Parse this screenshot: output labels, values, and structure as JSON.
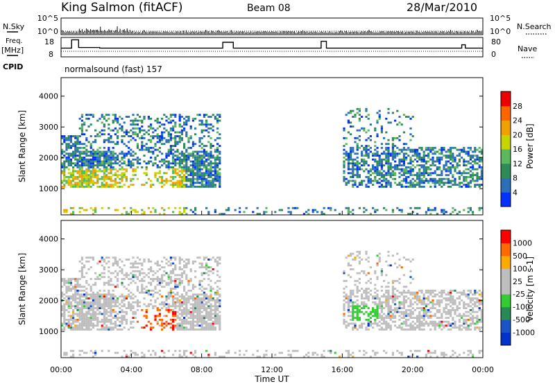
{
  "header": {
    "station": "King Salmon (fitACF)",
    "beam": "Beam 08",
    "date": "28/Mar/2010"
  },
  "left_labels": {
    "nsky": "N.Sky",
    "freq_line1": "Freq.",
    "freq_line2": "[MHz]",
    "cpid": "CPID"
  },
  "right_labels": {
    "nsearch": "N.Search",
    "nave": "Nave"
  },
  "cpid_text": "normalsound (fast) 157",
  "colors": {
    "power": [
      "#0033ff",
      "#2a6fb8",
      "#2e8b57",
      "#5cb85c",
      "#c8d400",
      "#f0a000",
      "#ff6600",
      "#ee0000"
    ],
    "velocity": [
      "#ff0000",
      "#ff6a00",
      "#ffaa00",
      "#bebebe",
      "#bebebe",
      "#33cc33",
      "#2a8a55",
      "#1a55c8",
      "#0033cc"
    ],
    "ground_scatter": "#bebebe"
  },
  "chart_data": [
    {
      "type": "line",
      "name": "noise-panel",
      "xlabel": "",
      "ylabel": "N.Sky",
      "y_ticks_left": [
        "10^5",
        "10^0"
      ],
      "y_ticks_right": [
        "10^5",
        "10^0"
      ],
      "right_label": "N.Search"
    },
    {
      "type": "line",
      "name": "freq-nave-panel",
      "ylabel": "Freq. [MHz]",
      "y_ticks_left": [
        "18",
        "8"
      ],
      "y_ticks_right": [
        "80",
        "0"
      ],
      "ylim": [
        8,
        18
      ],
      "x": [
        0,
        0.6,
        0.6,
        1.0,
        1.0,
        2.2,
        2.2,
        9.2,
        9.2,
        9.8,
        9.8,
        14.8,
        14.8,
        15.1,
        15.1,
        22.8,
        22.8,
        23.0,
        23.0,
        24.0
      ],
      "freq": [
        12.5,
        12.5,
        16.8,
        16.8,
        12.8,
        12.8,
        12.5,
        12.5,
        15.5,
        15.5,
        12.5,
        12.5,
        16.0,
        16.0,
        12.5,
        12.5,
        14.2,
        14.2,
        12.5,
        12.5
      ]
    },
    {
      "type": "heatmap",
      "name": "power-panel",
      "ylabel": "Slant Range [km]",
      "ylim": [
        150,
        4600
      ],
      "y_ticks": [
        1000,
        2000,
        3000,
        4000
      ],
      "colorbar_label": "Power [dB]",
      "colorbar_ticks": [
        "28",
        "24",
        "20",
        "16",
        "12",
        "8",
        "4"
      ],
      "colorbar_range": [
        0,
        32
      ]
    },
    {
      "type": "heatmap",
      "name": "velocity-panel",
      "ylabel": "Slant Range [km]",
      "ylim": [
        150,
        4600
      ],
      "y_ticks": [
        1000,
        2000,
        3000,
        4000
      ],
      "colorbar_label": "Velocity [m s-1]",
      "colorbar_ticks": [
        "1000",
        "500",
        "100",
        "25",
        "-25",
        "-100",
        "-500",
        "-1000"
      ],
      "x_ticks": [
        "00:00",
        "04:00",
        "08:00",
        "12:00",
        "16:00",
        "20:00",
        "00:00"
      ],
      "xlabel": "Time UT",
      "xlim": [
        0,
        24
      ]
    }
  ]
}
